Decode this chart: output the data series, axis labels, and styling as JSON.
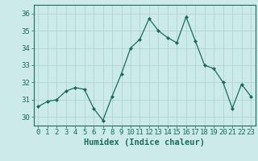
{
  "x": [
    0,
    1,
    2,
    3,
    4,
    5,
    6,
    7,
    8,
    9,
    10,
    11,
    12,
    13,
    14,
    15,
    16,
    17,
    18,
    19,
    20,
    21,
    22,
    23
  ],
  "y": [
    30.6,
    30.9,
    31.0,
    31.5,
    31.7,
    31.6,
    30.5,
    29.8,
    31.2,
    32.5,
    34.0,
    34.5,
    35.7,
    35.0,
    34.6,
    34.3,
    35.8,
    34.4,
    33.0,
    32.8,
    32.0,
    30.5,
    31.9,
    31.2
  ],
  "line_color": "#1a6b5a",
  "marker": "D",
  "marker_size": 2.0,
  "bg_color": "#cceaea",
  "grid_color": "#b0d4d4",
  "axis_color": "#1a6b5a",
  "xlabel": "Humidex (Indice chaleur)",
  "ylim": [
    29.5,
    36.5
  ],
  "yticks": [
    30,
    31,
    32,
    33,
    34,
    35,
    36
  ],
  "xticks": [
    0,
    1,
    2,
    3,
    4,
    5,
    6,
    7,
    8,
    9,
    10,
    11,
    12,
    13,
    14,
    15,
    16,
    17,
    18,
    19,
    20,
    21,
    22,
    23
  ],
  "tick_fontsize": 6.5,
  "xlabel_fontsize": 7.5
}
